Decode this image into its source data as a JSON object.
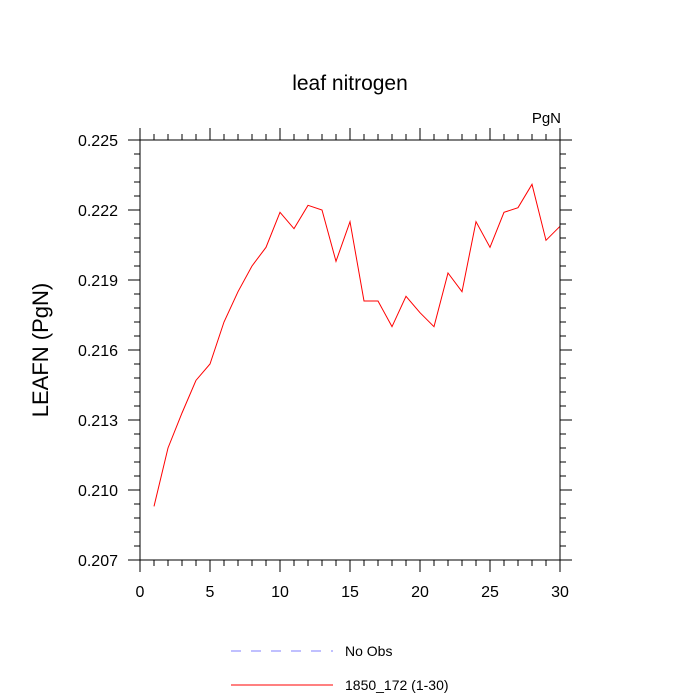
{
  "chart_data": {
    "type": "line",
    "title": "leaf nitrogen",
    "units_label": "PgN",
    "ylabel": "LEAFN  (PgN)",
    "xlabel": "",
    "xlim": [
      0,
      30
    ],
    "ylim": [
      0.207,
      0.225
    ],
    "x_ticks": [
      0,
      5,
      10,
      15,
      20,
      25,
      30
    ],
    "x_tick_labels": [
      "0",
      "5",
      "10",
      "15",
      "20",
      "25",
      "30"
    ],
    "y_ticks": [
      0.207,
      0.21,
      0.213,
      0.216,
      0.219,
      0.222,
      0.225
    ],
    "y_tick_labels": [
      "0.207",
      "0.210",
      "0.213",
      "0.216",
      "0.219",
      "0.222",
      "0.225"
    ],
    "legend_position": "bottom",
    "series": [
      {
        "name": "No Obs",
        "color": "#8080ff",
        "line_style": "dashed",
        "x": [],
        "values": []
      },
      {
        "name": "1850_172 (1-30)",
        "color": "#ff0000",
        "line_style": "solid",
        "x": [
          1,
          2,
          3,
          4,
          5,
          6,
          7,
          8,
          9,
          10,
          11,
          12,
          13,
          14,
          15,
          16,
          17,
          18,
          19,
          20,
          21,
          22,
          23,
          24,
          25,
          26,
          27,
          28,
          29,
          30
        ],
        "values": [
          0.2093,
          0.2118,
          0.2133,
          0.2147,
          0.2154,
          0.2172,
          0.2185,
          0.2196,
          0.2204,
          0.2219,
          0.2212,
          0.2222,
          0.222,
          0.2198,
          0.2215,
          0.2181,
          0.2181,
          0.217,
          0.2183,
          0.2176,
          0.217,
          0.2193,
          0.2185,
          0.2215,
          0.2204,
          0.2219,
          0.2221,
          0.2231,
          0.2207,
          0.2213
        ]
      }
    ]
  }
}
